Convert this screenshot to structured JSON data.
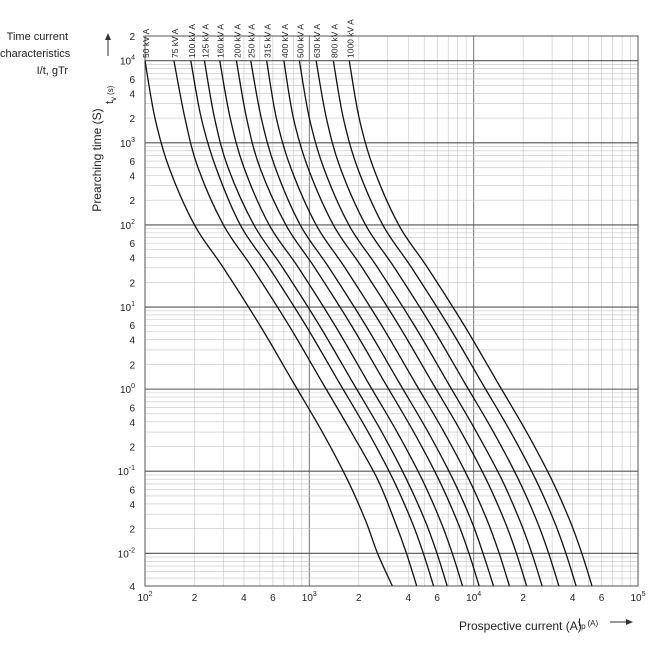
{
  "side_title": [
    "Time current",
    "characteristics",
    "I/t, gTr"
  ],
  "chart_data": {
    "type": "line",
    "title": "Time current characteristics I/t, gTr",
    "xlabel": "Prospective current (A)",
    "x_symbol": "I",
    "x_symbol_sub": "p",
    "x_unit": "(A)",
    "ylabel": "Prearching time (S)",
    "y_symbol": "t",
    "y_symbol_sub": "v",
    "y_unit": "(s)",
    "xscale": "log",
    "yscale": "log",
    "xlim": [
      100,
      100000
    ],
    "ylim": [
      0.004,
      20000
    ],
    "grid": true,
    "x_ticks": [
      {
        "value": 100,
        "mant": "10",
        "exp": "2"
      },
      {
        "value": 200,
        "mant": "2",
        "exp": ""
      },
      {
        "value": 400,
        "mant": "4",
        "exp": ""
      },
      {
        "value": 600,
        "mant": "6",
        "exp": ""
      },
      {
        "value": 1000,
        "mant": "10",
        "exp": "3"
      },
      {
        "value": 2000,
        "mant": "2",
        "exp": ""
      },
      {
        "value": 4000,
        "mant": "4",
        "exp": ""
      },
      {
        "value": 6000,
        "mant": "6",
        "exp": ""
      },
      {
        "value": 10000,
        "mant": "10",
        "exp": "4"
      },
      {
        "value": 20000,
        "mant": "2",
        "exp": ""
      },
      {
        "value": 40000,
        "mant": "4",
        "exp": ""
      },
      {
        "value": 60000,
        "mant": "6",
        "exp": ""
      },
      {
        "value": 100000,
        "mant": "10",
        "exp": "5"
      }
    ],
    "y_ticks": [
      {
        "value": 20000,
        "mant": "2",
        "exp": ""
      },
      {
        "value": 10000,
        "mant": "10",
        "exp": "4"
      },
      {
        "value": 6000,
        "mant": "6",
        "exp": ""
      },
      {
        "value": 4000,
        "mant": "4",
        "exp": ""
      },
      {
        "value": 2000,
        "mant": "2",
        "exp": ""
      },
      {
        "value": 1000,
        "mant": "10",
        "exp": "3"
      },
      {
        "value": 600,
        "mant": "6",
        "exp": ""
      },
      {
        "value": 400,
        "mant": "4",
        "exp": ""
      },
      {
        "value": 200,
        "mant": "2",
        "exp": ""
      },
      {
        "value": 100,
        "mant": "10",
        "exp": "2"
      },
      {
        "value": 60,
        "mant": "6",
        "exp": ""
      },
      {
        "value": 40,
        "mant": "4",
        "exp": ""
      },
      {
        "value": 20,
        "mant": "2",
        "exp": ""
      },
      {
        "value": 10,
        "mant": "10",
        "exp": "1"
      },
      {
        "value": 6,
        "mant": "6",
        "exp": ""
      },
      {
        "value": 4,
        "mant": "4",
        "exp": ""
      },
      {
        "value": 2,
        "mant": "2",
        "exp": ""
      },
      {
        "value": 1,
        "mant": "10",
        "exp": "0"
      },
      {
        "value": 0.6,
        "mant": "6",
        "exp": ""
      },
      {
        "value": 0.4,
        "mant": "4",
        "exp": ""
      },
      {
        "value": 0.2,
        "mant": "2",
        "exp": ""
      },
      {
        "value": 0.1,
        "mant": "10",
        "exp": "-1"
      },
      {
        "value": 0.06,
        "mant": "6",
        "exp": ""
      },
      {
        "value": 0.04,
        "mant": "4",
        "exp": ""
      },
      {
        "value": 0.02,
        "mant": "2",
        "exp": ""
      },
      {
        "value": 0.01,
        "mant": "10",
        "exp": "-2"
      },
      {
        "value": 0.004,
        "mant": "4",
        "exp": ""
      }
    ],
    "series": [
      {
        "name": "50 kV A",
        "x": [
          100,
          115,
          140,
          200,
          300,
          500,
          800,
          1200,
          1700,
          2200,
          2600,
          3200
        ],
        "y": [
          10000,
          2000,
          500,
          100,
          30,
          6,
          1.2,
          0.3,
          0.08,
          0.025,
          0.01,
          0.004
        ]
      },
      {
        "name": "75 kV A",
        "x": [
          150,
          175,
          210,
          300,
          450,
          750,
          1200,
          1800,
          2600,
          3300,
          3900,
          4500
        ],
        "y": [
          10000,
          2000,
          500,
          100,
          30,
          6,
          1.2,
          0.3,
          0.08,
          0.025,
          0.01,
          0.004
        ]
      },
      {
        "name": "100 kV A",
        "x": [
          190,
          220,
          270,
          380,
          570,
          950,
          1520,
          2280,
          3230,
          4180,
          4940,
          5700
        ],
        "y": [
          10000,
          2000,
          500,
          100,
          30,
          6,
          1.2,
          0.3,
          0.08,
          0.025,
          0.01,
          0.004
        ]
      },
      {
        "name": "125 kV A",
        "x": [
          230,
          265,
          320,
          460,
          690,
          1150,
          1840,
          2760,
          3900,
          5060,
          5980,
          6900
        ],
        "y": [
          10000,
          2000,
          500,
          100,
          30,
          6,
          1.2,
          0.3,
          0.08,
          0.025,
          0.01,
          0.004
        ]
      },
      {
        "name": "160 kV A",
        "x": [
          285,
          330,
          400,
          570,
          860,
          1430,
          2280,
          3420,
          4850,
          6270,
          7410,
          8550
        ],
        "y": [
          10000,
          2000,
          500,
          100,
          30,
          6,
          1.2,
          0.3,
          0.08,
          0.025,
          0.01,
          0.004
        ]
      },
      {
        "name": "200 kV A",
        "x": [
          360,
          415,
          500,
          720,
          1080,
          1800,
          2880,
          4320,
          6120,
          7920,
          9360,
          10800
        ],
        "y": [
          10000,
          2000,
          500,
          100,
          30,
          6,
          1.2,
          0.3,
          0.08,
          0.025,
          0.01,
          0.004
        ]
      },
      {
        "name": "250 kV A",
        "x": [
          440,
          510,
          620,
          880,
          1320,
          2200,
          3520,
          5280,
          7480,
          9680,
          11400,
          13200
        ],
        "y": [
          10000,
          2000,
          500,
          100,
          30,
          6,
          1.2,
          0.3,
          0.08,
          0.025,
          0.01,
          0.004
        ]
      },
      {
        "name": "315 kV A",
        "x": [
          550,
          630,
          770,
          1100,
          1650,
          2750,
          4400,
          6600,
          9350,
          12100,
          14300,
          16500
        ],
        "y": [
          10000,
          2000,
          500,
          100,
          30,
          6,
          1.2,
          0.3,
          0.08,
          0.025,
          0.01,
          0.004
        ]
      },
      {
        "name": "400 kV A",
        "x": [
          700,
          800,
          980,
          1400,
          2100,
          3500,
          5600,
          8400,
          11900,
          15400,
          18200,
          21000
        ],
        "y": [
          10000,
          2000,
          500,
          100,
          30,
          6,
          1.2,
          0.3,
          0.08,
          0.025,
          0.01,
          0.004
        ]
      },
      {
        "name": "500 kV A",
        "x": [
          870,
          1000,
          1220,
          1740,
          2610,
          4350,
          6960,
          10400,
          14800,
          19100,
          22600,
          26100
        ],
        "y": [
          10000,
          2000,
          500,
          100,
          30,
          6,
          1.2,
          0.3,
          0.08,
          0.025,
          0.01,
          0.004
        ]
      },
      {
        "name": "630 kV A",
        "x": [
          1100,
          1270,
          1540,
          2200,
          3300,
          5500,
          8800,
          13200,
          18700,
          24200,
          28600,
          33000
        ],
        "y": [
          10000,
          2000,
          500,
          100,
          30,
          6,
          1.2,
          0.3,
          0.08,
          0.025,
          0.01,
          0.004
        ]
      },
      {
        "name": "800 kV A",
        "x": [
          1400,
          1610,
          1960,
          2800,
          4200,
          7000,
          11200,
          16800,
          23800,
          30800,
          36400,
          42000
        ],
        "y": [
          10000,
          2000,
          500,
          100,
          30,
          6,
          1.2,
          0.3,
          0.08,
          0.025,
          0.01,
          0.004
        ]
      },
      {
        "name": "1000 kV A",
        "x": [
          1750,
          2010,
          2450,
          3500,
          5250,
          8750,
          14000,
          21000,
          29750,
          38500,
          45500,
          52500
        ],
        "y": [
          10000,
          2000,
          500,
          100,
          30,
          6,
          1.2,
          0.3,
          0.08,
          0.025,
          0.01,
          0.004
        ]
      }
    ]
  }
}
